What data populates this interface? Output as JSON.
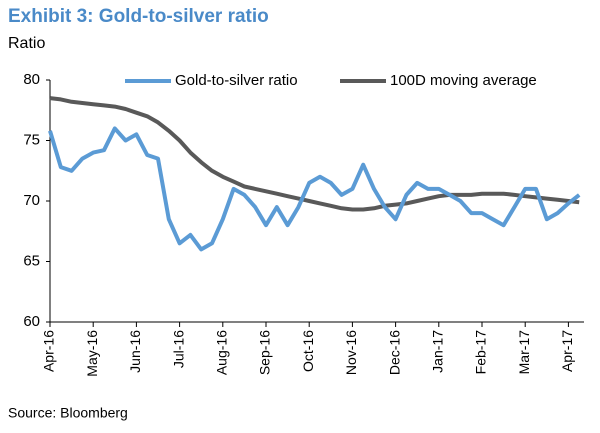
{
  "chart_data": {
    "type": "line",
    "title": "Exhibit 3: Gold-to-silver ratio",
    "y_label": "Ratio",
    "source": "Source: Bloomberg",
    "categories": [
      "Apr-16",
      null,
      null,
      null,
      "May-16",
      null,
      null,
      null,
      "Jun-16",
      null,
      null,
      null,
      "Jul-16",
      null,
      null,
      null,
      "Aug-16",
      null,
      null,
      null,
      "Sep-16",
      null,
      null,
      null,
      "Oct-16",
      null,
      null,
      null,
      "Nov-16",
      null,
      null,
      null,
      "Dec-16",
      null,
      null,
      null,
      "Jan-17",
      null,
      null,
      null,
      "Feb-17",
      null,
      null,
      null,
      "Mar-17",
      null,
      null,
      null,
      "Apr-17",
      null
    ],
    "series": [
      {
        "name": "Gold-to-silver ratio",
        "color": "#5b9bd5",
        "values": [
          75.8,
          72.8,
          72.5,
          73.5,
          74.0,
          74.2,
          76.0,
          75.0,
          75.5,
          73.8,
          73.5,
          68.5,
          66.5,
          67.2,
          66.0,
          66.5,
          68.5,
          71.0,
          70.5,
          69.5,
          68.0,
          69.5,
          68.0,
          69.5,
          71.5,
          72.0,
          71.5,
          70.5,
          71.0,
          73.0,
          71.0,
          69.5,
          68.5,
          70.5,
          71.5,
          71.0,
          71.0,
          70.5,
          70.0,
          69.0,
          69.0,
          68.5,
          68.0,
          69.5,
          71.0,
          71.0,
          68.5,
          69.0,
          69.8,
          70.5
        ]
      },
      {
        "name": "100D moving average",
        "color": "#595959",
        "values": [
          78.5,
          78.4,
          78.2,
          78.1,
          78.0,
          77.9,
          77.8,
          77.6,
          77.3,
          77.0,
          76.5,
          75.8,
          75.0,
          74.0,
          73.2,
          72.5,
          72.0,
          71.6,
          71.2,
          71.0,
          70.8,
          70.6,
          70.4,
          70.2,
          70.0,
          69.8,
          69.6,
          69.4,
          69.3,
          69.3,
          69.4,
          69.6,
          69.7,
          69.8,
          70.0,
          70.2,
          70.4,
          70.5,
          70.5,
          70.5,
          70.6,
          70.6,
          70.6,
          70.5,
          70.4,
          70.3,
          70.2,
          70.1,
          70.0,
          69.9
        ]
      }
    ],
    "ylim": [
      60,
      80
    ],
    "yticks": [
      60,
      65,
      70,
      75,
      80
    ],
    "grid": false
  }
}
